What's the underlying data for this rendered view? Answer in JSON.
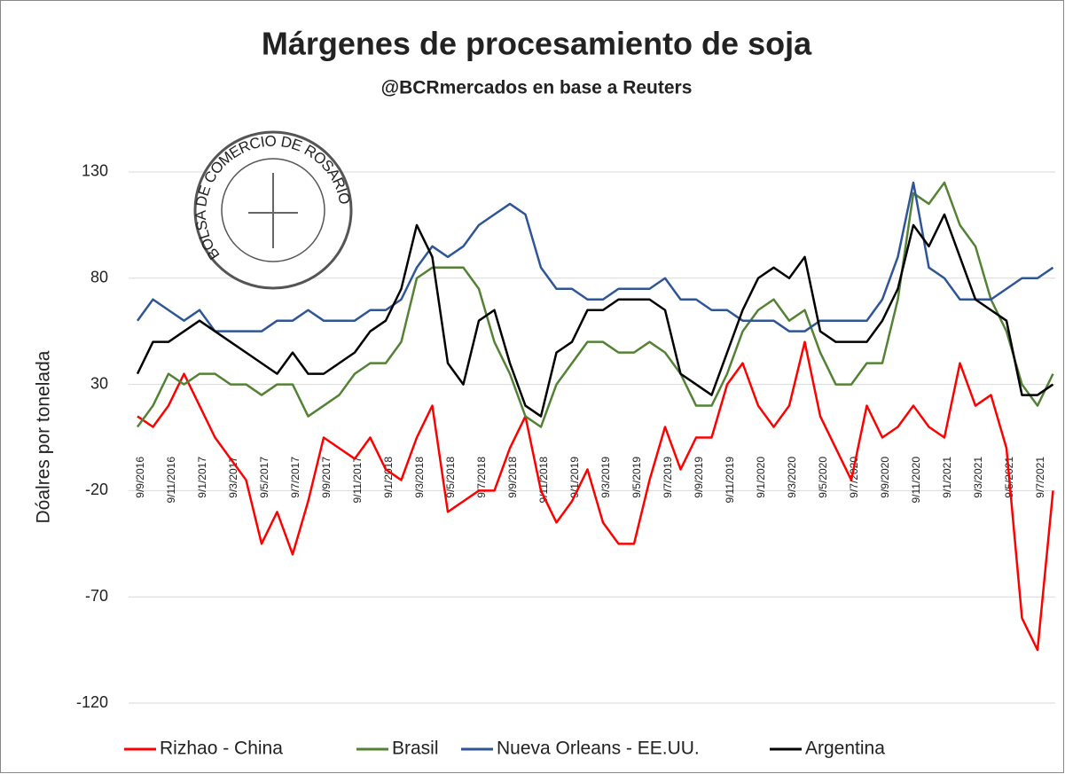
{
  "chart_data": {
    "type": "line",
    "title": "Márgenes de procesamiento de soja",
    "subtitle": "@BCRmercados en base a Reuters",
    "y_label": "Dóalres por tonelada",
    "logo_text": "BOLSA DE COMERCIO DE ROSARIO",
    "categories": [
      "9/9/2016",
      null,
      "9/11/2016",
      null,
      "9/1/2017",
      null,
      "9/3/2017",
      null,
      "9/5/2017",
      null,
      "9/7/2017",
      null,
      "9/9/2017",
      null,
      "9/11/2017",
      null,
      "9/1/2018",
      null,
      "9/3/2018",
      null,
      "9/5/2018",
      null,
      "9/7/2018",
      null,
      "9/9/2018",
      null,
      "9/11/2018",
      null,
      "9/1/2019",
      null,
      "9/3/2019",
      null,
      "9/5/2019",
      null,
      "9/7/2019",
      null,
      "9/9/2019",
      null,
      "9/11/2019",
      null,
      "9/1/2020",
      null,
      "9/3/2020",
      null,
      "9/5/2020",
      null,
      "9/7/2020",
      null,
      "9/9/2020",
      null,
      "9/11/2020",
      null,
      "9/1/2021",
      null,
      "9/3/2021",
      null,
      "9/5/2021",
      null,
      "9/7/2021",
      null
    ],
    "series": [
      {
        "name": "Rizhao - China",
        "color": "#ff0000",
        "values": [
          15,
          10,
          20,
          35,
          20,
          5,
          -5,
          -15,
          -45,
          -30,
          -50,
          -25,
          5,
          0,
          -5,
          5,
          -10,
          -15,
          5,
          20,
          -30,
          -25,
          -20,
          -20,
          0,
          15,
          -20,
          -35,
          -25,
          -10,
          -35,
          -45,
          -45,
          -15,
          10,
          -10,
          5,
          5,
          30,
          40,
          20,
          10,
          20,
          50,
          15,
          0,
          -15,
          20,
          5,
          10,
          20,
          10,
          5,
          40,
          20,
          25,
          0,
          -80,
          -95,
          -20
        ]
      },
      {
        "name": "Brasil",
        "color": "#548235",
        "values": [
          10,
          20,
          35,
          30,
          35,
          35,
          30,
          30,
          25,
          30,
          30,
          15,
          20,
          25,
          35,
          40,
          40,
          50,
          80,
          85,
          85,
          85,
          75,
          50,
          35,
          15,
          10,
          30,
          40,
          50,
          50,
          45,
          45,
          50,
          45,
          35,
          20,
          20,
          35,
          55,
          65,
          70,
          60,
          65,
          45,
          30,
          30,
          40,
          40,
          70,
          120,
          115,
          125,
          105,
          95,
          70,
          55,
          30,
          20,
          35
        ]
      },
      {
        "name": "Nueva Orleans - EE.UU.",
        "color": "#2f5597",
        "values": [
          60,
          70,
          65,
          60,
          65,
          55,
          55,
          55,
          55,
          60,
          60,
          65,
          60,
          60,
          60,
          65,
          65,
          70,
          85,
          95,
          90,
          95,
          105,
          110,
          115,
          110,
          85,
          75,
          75,
          70,
          70,
          75,
          75,
          75,
          80,
          70,
          70,
          65,
          65,
          60,
          60,
          60,
          55,
          55,
          60,
          60,
          60,
          60,
          70,
          90,
          125,
          85,
          80,
          70,
          70,
          70,
          75,
          80,
          80,
          85
        ]
      },
      {
        "name": "Argentina",
        "color": "#000000",
        "values": [
          35,
          50,
          50,
          55,
          60,
          55,
          50,
          45,
          40,
          35,
          45,
          35,
          35,
          40,
          45,
          55,
          60,
          75,
          105,
          90,
          40,
          30,
          60,
          65,
          40,
          20,
          15,
          45,
          50,
          65,
          65,
          70,
          70,
          70,
          65,
          35,
          30,
          25,
          45,
          65,
          80,
          85,
          80,
          90,
          55,
          50,
          50,
          50,
          60,
          75,
          105,
          95,
          110,
          90,
          70,
          65,
          60,
          25,
          25,
          30
        ]
      }
    ],
    "ylim": [
      -130,
      140
    ],
    "yticks": [
      -120,
      -70,
      -20,
      30,
      80,
      130
    ],
    "grid": true,
    "legend": "bottom"
  }
}
